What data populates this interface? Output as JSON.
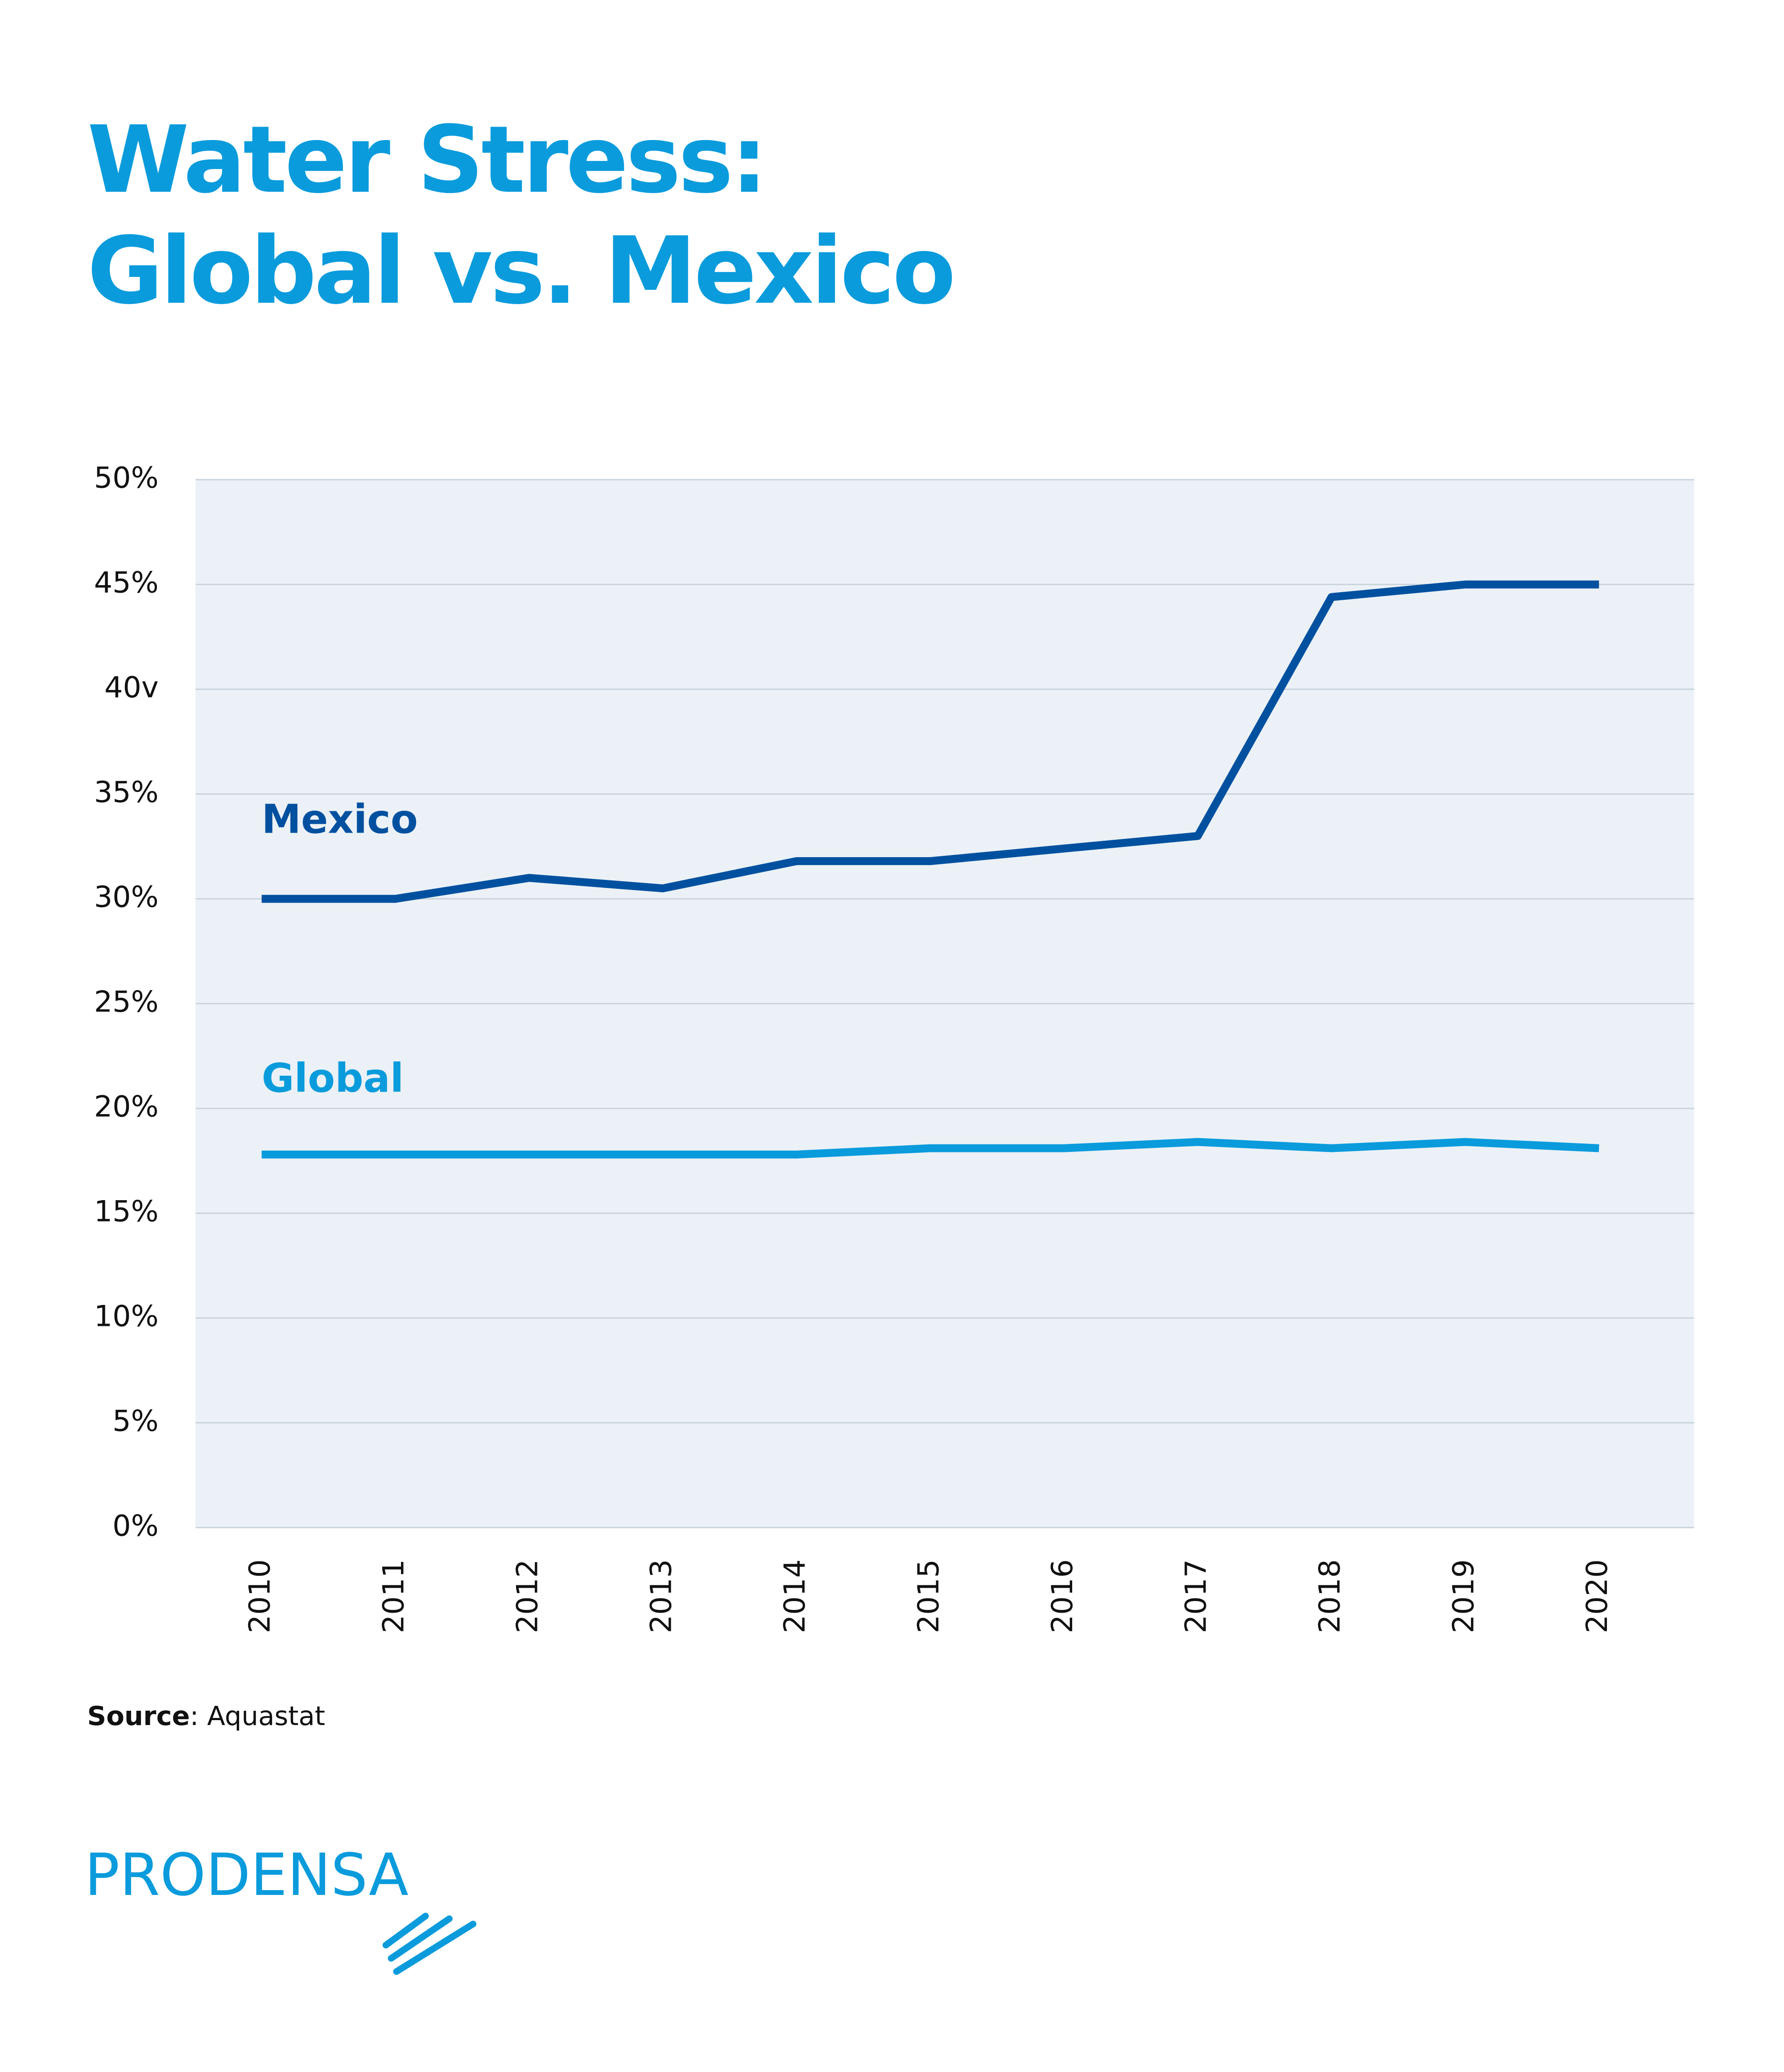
{
  "chart_data": {
    "type": "line",
    "title": [
      "Water Stress:",
      "Global vs. Mexico"
    ],
    "categories": [
      "2010",
      "2011",
      "2012",
      "2013",
      "2014",
      "2015",
      "2016",
      "2017",
      "2018",
      "2019",
      "2020"
    ],
    "series": [
      {
        "name": "Mexico",
        "color": "#0050a0",
        "values": [
          30,
          30,
          31,
          30.5,
          31.8,
          31.8,
          32.4,
          33,
          44.4,
          45,
          45
        ]
      },
      {
        "name": "Global",
        "color": "#0a9bdc",
        "values": [
          17.8,
          17.8,
          17.8,
          17.8,
          17.8,
          18.1,
          18.1,
          18.4,
          18.1,
          18.4,
          18.1
        ]
      }
    ],
    "ylim": [
      0,
      50
    ],
    "yticks": [
      {
        "value": 0,
        "label": "0%"
      },
      {
        "value": 5,
        "label": "5%"
      },
      {
        "value": 10,
        "label": "10%"
      },
      {
        "value": 15,
        "label": "15%"
      },
      {
        "value": 20,
        "label": "20%"
      },
      {
        "value": 25,
        "label": "25%"
      },
      {
        "value": 30,
        "label": "30%"
      },
      {
        "value": 35,
        "label": "35%"
      },
      {
        "value": 40,
        "label": "40v"
      },
      {
        "value": 45,
        "label": "45%"
      },
      {
        "value": 50,
        "label": "50%"
      }
    ],
    "grid": true,
    "source": {
      "label": "Source",
      "text": ": Aquastat"
    },
    "logo": "PRODENSA"
  }
}
